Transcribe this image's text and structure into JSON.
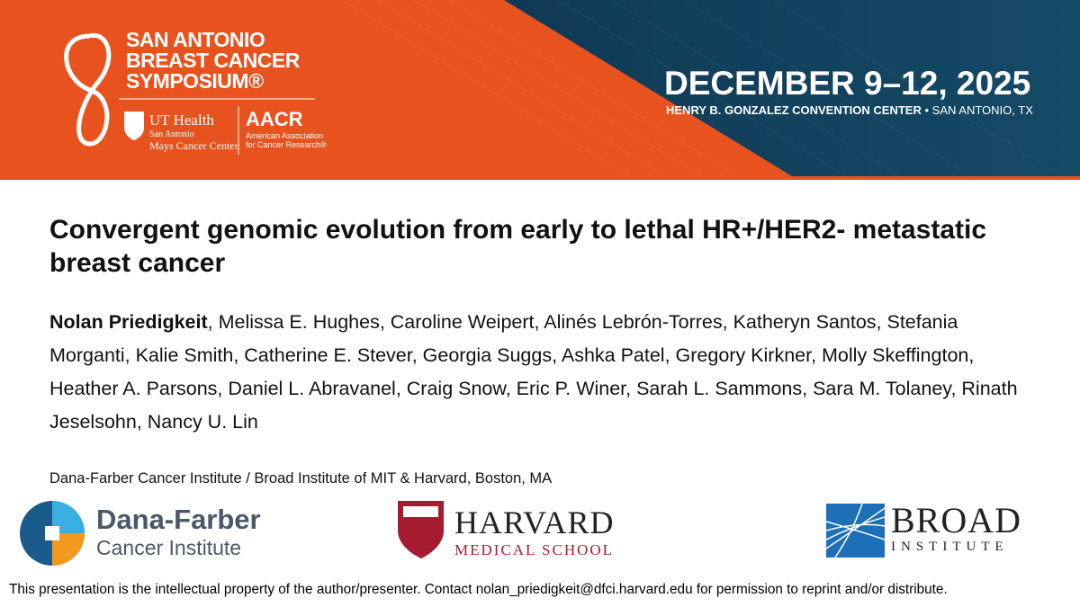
{
  "header": {
    "symposium": [
      "SAN ANTONIO",
      "BREAST CANCER",
      "SYMPOSIUM®"
    ],
    "ut_health": {
      "name": "UT Health",
      "sub": "San Antonio",
      "center": "Mays Cancer Center"
    },
    "aacr": {
      "name": "AACR",
      "sub": "American Association",
      "sub2": "for Cancer Research®"
    },
    "dates": "DECEMBER 9–12, 2025",
    "venue": "HENRY B. GONZALEZ CONVENTION CENTER",
    "location": "• SAN ANTONIO, TX"
  },
  "title": "Convergent genomic evolution from early to lethal HR+/HER2- metastatic breast cancer",
  "authors": {
    "presenter": "Nolan Priedigkeit",
    "others": ", Melissa E. Hughes, Caroline Weipert, Alinés Lebrón-Torres, Katheryn Santos, Stefania Morganti, Kalie Smith, Catherine E. Stever, Georgia Suggs, Ashka Patel, Gregory Kirkner, Molly Skeffington, Heather A. Parsons, Daniel L. Abravanel, Craig Snow, Eric P. Winer, Sarah L. Sammons, Sara M. Tolaney, Rinath Jeselsohn, Nancy U. Lin"
  },
  "affiliation": "Dana-Farber Cancer Institute / Broad Institute of MIT & Harvard, Boston, MA",
  "logos": {
    "dana_farber": [
      "Dana-Farber",
      "Cancer Institute"
    ],
    "harvard": [
      "HARVARD",
      "MEDICAL SCHOOL"
    ],
    "broad": [
      "BROAD",
      "INSTITUTE"
    ]
  },
  "footer": "This presentation is the intellectual property of the author/presenter. Contact nolan_priedigkeit@dfci.harvard.edu for permission to reprint and/or distribute."
}
